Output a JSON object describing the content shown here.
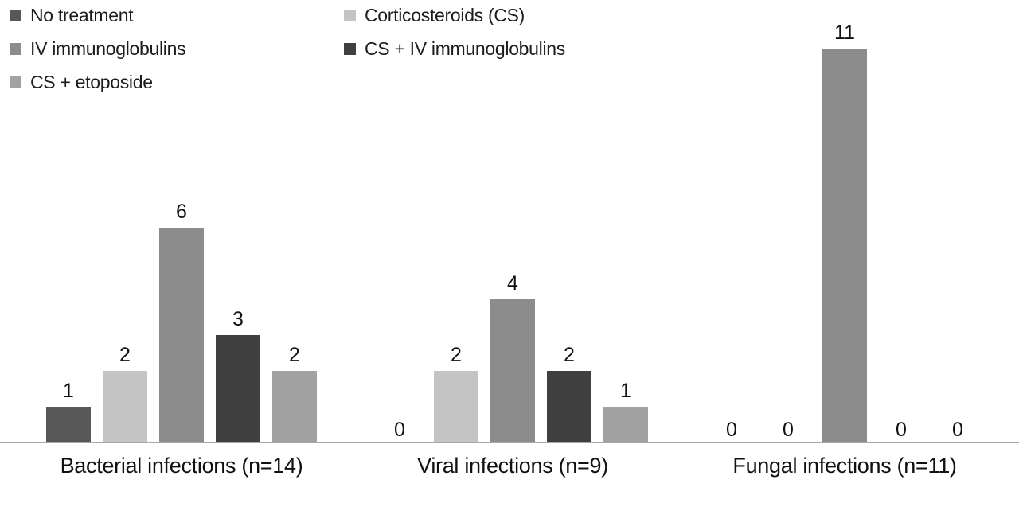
{
  "chart_data": {
    "type": "bar",
    "title": "",
    "xlabel": "",
    "ylabel": "",
    "categories": [
      "Bacterial infections (n=14)",
      "Viral infections (n=9)",
      "Fungal infections (n=11)"
    ],
    "series": [
      {
        "name": "No treatment",
        "color": "#575757",
        "values": [
          1,
          0,
          0
        ]
      },
      {
        "name": "Corticosteroids (CS)",
        "color": "#c4c4c4",
        "values": [
          2,
          2,
          0
        ]
      },
      {
        "name": "IV immunoglobulins",
        "color": "#8c8c8c",
        "values": [
          6,
          4,
          11
        ]
      },
      {
        "name": "CS + IV immunoglobulins",
        "color": "#3f3f3f",
        "values": [
          3,
          2,
          0
        ]
      },
      {
        "name": "CS + etoposide",
        "color": "#a2a2a2",
        "values": [
          2,
          1,
          0
        ]
      }
    ],
    "ylim": [
      0,
      11
    ],
    "grid": false,
    "axes_visible": false,
    "legend_position": "top-left",
    "value_labels": true,
    "background": "#ffffff",
    "baseline_color": "#a9a9a9",
    "text_color": "#111111"
  }
}
